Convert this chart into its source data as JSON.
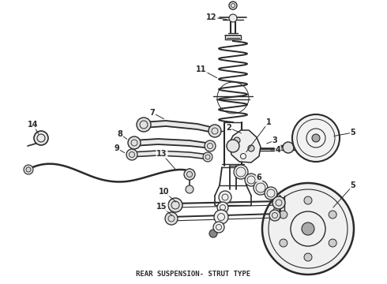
{
  "title": "REAR SUSPENSION- STRUT TYPE",
  "bg_color": "#ffffff",
  "line_color": "#2a2a2a",
  "title_fontsize": 6.5,
  "fig_w": 4.9,
  "fig_h": 3.6,
  "dpi": 100
}
